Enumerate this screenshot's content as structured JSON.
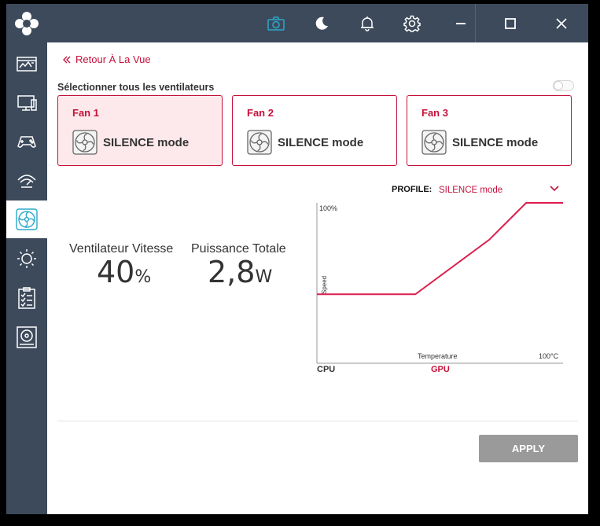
{
  "nav": {
    "back_label": "Retour À La Vue"
  },
  "fans": {
    "select_all_label": "Sélectionner tous les ventilateurs",
    "select_all_on": false,
    "items": [
      {
        "name": "Fan 1",
        "mode": "SILENCE mode",
        "selected": true
      },
      {
        "name": "Fan 2",
        "mode": "SILENCE mode",
        "selected": false
      },
      {
        "name": "Fan 3",
        "mode": "SILENCE mode",
        "selected": false
      }
    ]
  },
  "stats": {
    "speed_label": "Ventilateur Vitesse",
    "speed_value": "40",
    "speed_unit": "%",
    "power_label": "Puissance Totale",
    "power_value": "2,8",
    "power_unit": "W"
  },
  "profile": {
    "label": "PROFILE:",
    "value": "SILENCE mode"
  },
  "chart_data": {
    "type": "line",
    "ylabel": "Speed",
    "xlabel": "Temperature",
    "y_top_label": "100%",
    "x_right_label": "100°C",
    "xlim": [
      0,
      100
    ],
    "ylim": [
      0,
      100
    ],
    "series": [
      {
        "values": [
          [
            0,
            43
          ],
          [
            40,
            43
          ],
          [
            70,
            77
          ],
          [
            85,
            100
          ],
          [
            100,
            100
          ]
        ]
      }
    ]
  },
  "sensors": {
    "cpu_label": "CPU",
    "gpu_label": "GPU",
    "active": "GPU"
  },
  "actions": {
    "apply_label": "APPLY"
  },
  "colors": {
    "accent": "#c5113a",
    "sidebar": "#3d4a5c",
    "selected_card": "#fde9ec",
    "apply_disabled": "#9a9a9a"
  },
  "icons": {
    "sidebar": [
      "dashboard-icon",
      "monitor-icon",
      "gamepad-icon",
      "speedometer-icon",
      "fan-icon",
      "brightness-icon",
      "checklist-icon",
      "storage-icon"
    ],
    "topbar": [
      "camera-icon",
      "moon-icon",
      "bell-icon",
      "gear-icon",
      "minimize-icon",
      "maximize-icon",
      "close-icon"
    ]
  }
}
